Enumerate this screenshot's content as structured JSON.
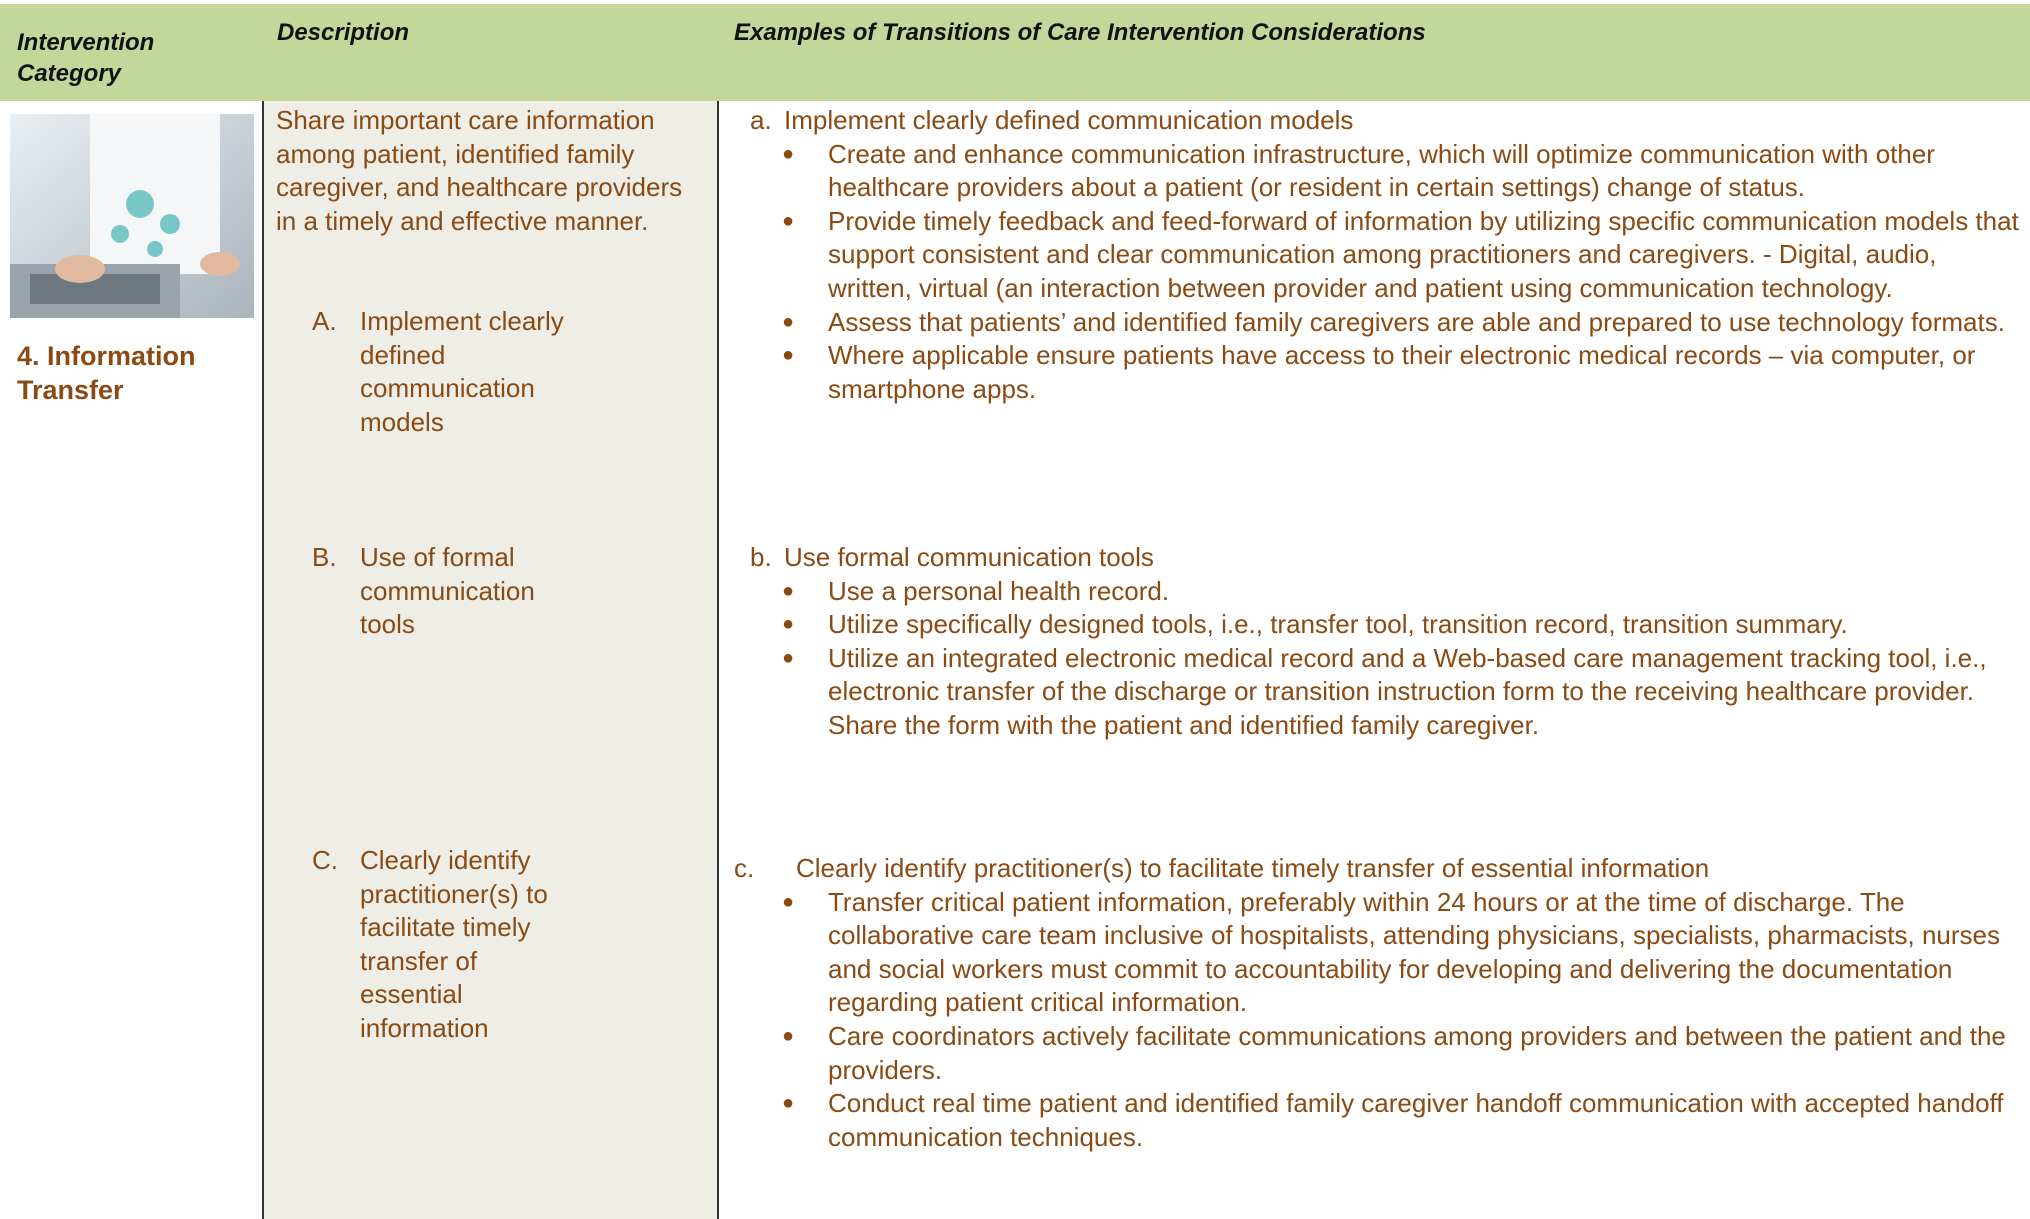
{
  "header": {
    "category": "Intervention Category",
    "description": "Description",
    "examples": "Examples of Transitions of Care Intervention Considerations"
  },
  "category": {
    "title": "4. Information Transfer"
  },
  "description": {
    "summary": "Share important care information among patient, identified family caregiver, and healthcare providers in a timely and effective manner.",
    "items": [
      {
        "marker": "A.",
        "text": "Implement clearly defined communication models"
      },
      {
        "marker": "B.",
        "text": "Use of formal communication tools"
      },
      {
        "marker": "C.",
        "text": "Clearly identify practitioner(s) to facilitate timely transfer of essential information"
      }
    ]
  },
  "sections": [
    {
      "marker": "a.",
      "title": "Implement clearly defined communication models",
      "bullets": [
        "Create and enhance communication infrastructure, which will optimize communication with other healthcare providers about a patient (or resident in certain settings) change of status.",
        "Provide timely feedback and feed-forward of information by utilizing specific communication models that support consistent and clear communication among practitioners and caregivers. - Digital, audio, written, virtual (an interaction between provider and patient using communication technology.",
        "Assess that patients’ and identified family caregivers are able and prepared to use technology formats.",
        "Where applicable ensure patients have access to their electronic medical records – via computer, or smartphone apps."
      ]
    },
    {
      "marker": "b.",
      "title": "Use formal communication tools",
      "bullets": [
        "Use a personal health record.",
        "Utilize specifically designed tools, i.e., transfer tool, transition record, transition summary.",
        "Utilize an integrated electronic medical record and a Web-based care management tracking tool, i.e., electronic transfer of the discharge or transition instruction form to the receiving healthcare provider. Share the form with the patient and identified family caregiver."
      ]
    },
    {
      "marker": "c.",
      "title": "Clearly identify practitioner(s) to facilitate timely transfer of essential information",
      "bullets": [
        "Transfer critical patient information, preferably within 24 hours or at the time of discharge. The collaborative care team inclusive of hospitalists, attending physicians, specialists, pharmacists, nurses and social workers must commit to accountability for developing and delivering the documentation regarding patient critical information.",
        "Care coordinators actively facilitate communications among providers and between the patient and the providers.",
        "Conduct real time patient and identified family caregiver handoff communication with accepted handoff communication techniques."
      ]
    }
  ]
}
